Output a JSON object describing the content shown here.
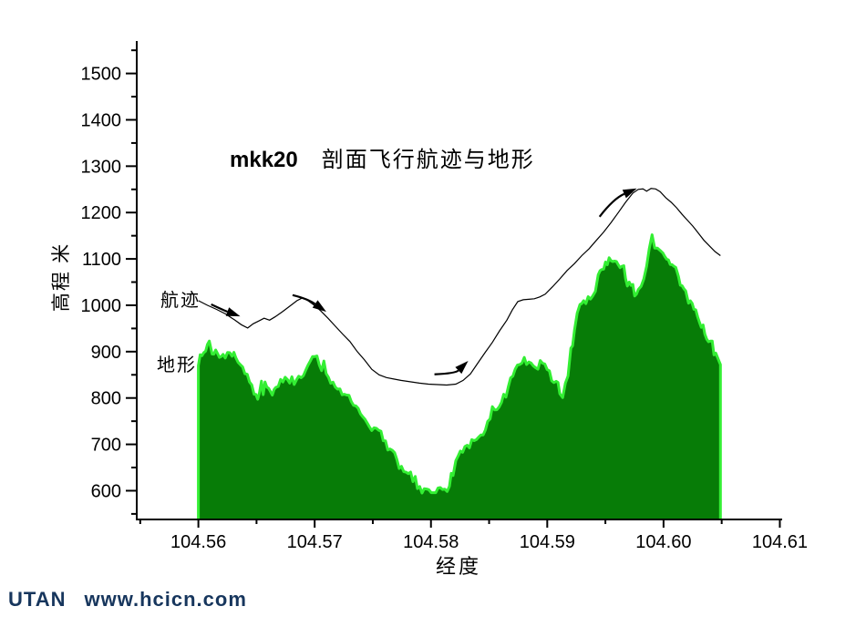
{
  "title": {
    "series": "mkk20",
    "text": "剖面飞行航迹与地形"
  },
  "watermark": {
    "brand": "UTAN",
    "site": "www.hcicn.com",
    "color": "#17365D"
  },
  "colors": {
    "background": "#FFFFFF",
    "axis": "#000000",
    "terrain_fill": "#077C07",
    "terrain_edge": "#33EE33",
    "trajectory": "#000000"
  },
  "chart_data": {
    "type": "area",
    "title": "mkk20  剖面飞行航迹与地形",
    "xlabel": "经度",
    "ylabel": "高程 米",
    "x_range": [
      104.5547,
      104.6102
    ],
    "y_range": [
      538,
      1570
    ],
    "grid": false,
    "x_tick_values": [
      104.56,
      104.57,
      104.58,
      104.59,
      104.6,
      104.61
    ],
    "x_tick_labels": [
      "104.56",
      "104.57",
      "104.58",
      "104.59",
      "104.60",
      "104.61"
    ],
    "x_minor_ticks": [
      104.555,
      104.565,
      104.575,
      104.585,
      104.595,
      104.605
    ],
    "y_tick_values": [
      600,
      700,
      800,
      900,
      1000,
      1100,
      1200,
      1300,
      1400,
      1500
    ],
    "y_tick_labels": [
      "600",
      "700",
      "800",
      "900",
      "1000",
      "1100",
      "1200",
      "1300",
      "1400",
      "1500"
    ],
    "y_minor_ticks": [
      550,
      650,
      750,
      850,
      950,
      1050,
      1150,
      1250,
      1350,
      1450,
      1550
    ],
    "series": [
      {
        "name": "地形",
        "type": "area",
        "fill": "#077C07",
        "edge": "#33EE33",
        "edge_width": 3,
        "style": "jagged",
        "jitter_m": 9,
        "spike_m": 16,
        "points": [
          [
            104.56,
            870
          ],
          [
            104.56031,
            890
          ],
          [
            104.56063,
            905
          ],
          [
            104.56094,
            928
          ],
          [
            104.56118,
            900
          ],
          [
            104.56149,
            893
          ],
          [
            104.56181,
            879
          ],
          [
            104.56212,
            889
          ],
          [
            104.56251,
            896
          ],
          [
            104.5629,
            892
          ],
          [
            104.56322,
            884
          ],
          [
            104.56361,
            870
          ],
          [
            104.564,
            856
          ],
          [
            104.5644,
            835
          ],
          [
            104.56479,
            810
          ],
          [
            104.5651,
            800
          ],
          [
            104.56542,
            812
          ],
          [
            104.56573,
            820
          ],
          [
            104.56604,
            826
          ],
          [
            104.56636,
            810
          ],
          [
            104.56667,
            828
          ],
          [
            104.56707,
            836
          ],
          [
            104.56746,
            843
          ],
          [
            104.56785,
            840
          ],
          [
            104.56824,
            834
          ],
          [
            104.56863,
            842
          ],
          [
            104.56903,
            850
          ],
          [
            104.56942,
            860
          ],
          [
            104.56981,
            896
          ],
          [
            104.5702,
            886
          ],
          [
            104.5706,
            862
          ],
          [
            104.57099,
            852
          ],
          [
            104.57138,
            840
          ],
          [
            104.57177,
            826
          ],
          [
            104.57217,
            812
          ],
          [
            104.57256,
            808
          ],
          [
            104.57295,
            800
          ],
          [
            104.57334,
            788
          ],
          [
            104.57374,
            772
          ],
          [
            104.57413,
            760
          ],
          [
            104.57452,
            746
          ],
          [
            104.57491,
            734
          ],
          [
            104.57531,
            726
          ],
          [
            104.5757,
            712
          ],
          [
            104.57609,
            700
          ],
          [
            104.57648,
            688
          ],
          [
            104.57688,
            668
          ],
          [
            104.57727,
            655
          ],
          [
            104.57766,
            645
          ],
          [
            104.57805,
            630
          ],
          [
            104.57845,
            618
          ],
          [
            104.57884,
            606
          ],
          [
            104.57923,
            600
          ],
          [
            104.57962,
            597
          ],
          [
            104.58002,
            594
          ],
          [
            104.58041,
            598
          ],
          [
            104.5808,
            600
          ],
          [
            104.58119,
            596
          ],
          [
            104.58159,
            605
          ],
          [
            104.5819,
            640
          ],
          [
            104.58214,
            668
          ],
          [
            104.58253,
            680
          ],
          [
            104.58292,
            695
          ],
          [
            104.58331,
            700
          ],
          [
            104.58371,
            710
          ],
          [
            104.5841,
            718
          ],
          [
            104.58449,
            726
          ],
          [
            104.58488,
            750
          ],
          [
            104.58528,
            775
          ],
          [
            104.58567,
            780
          ],
          [
            104.58606,
            795
          ],
          [
            104.58645,
            805
          ],
          [
            104.58685,
            845
          ],
          [
            104.58724,
            855
          ],
          [
            104.58763,
            868
          ],
          [
            104.58802,
            880
          ],
          [
            104.58842,
            876
          ],
          [
            104.58881,
            874
          ],
          [
            104.5892,
            866
          ],
          [
            104.58959,
            878
          ],
          [
            104.58999,
            860
          ],
          [
            104.59038,
            845
          ],
          [
            104.59077,
            834
          ],
          [
            104.59108,
            815
          ],
          [
            104.59132,
            803
          ],
          [
            104.59156,
            815
          ],
          [
            104.59179,
            850
          ],
          [
            104.59203,
            890
          ],
          [
            104.59218,
            920
          ],
          [
            104.59234,
            955
          ],
          [
            104.59258,
            975
          ],
          [
            104.59281,
            990
          ],
          [
            104.59313,
            1003
          ],
          [
            104.59352,
            1012
          ],
          [
            104.59391,
            1015
          ],
          [
            104.59414,
            1030
          ],
          [
            104.59438,
            1070
          ],
          [
            104.59469,
            1075
          ],
          [
            104.59501,
            1085
          ],
          [
            104.59532,
            1092
          ],
          [
            104.59563,
            1088
          ],
          [
            104.59595,
            1086
          ],
          [
            104.59626,
            1085
          ],
          [
            104.59658,
            1070
          ],
          [
            104.59689,
            1050
          ],
          [
            104.5972,
            1040
          ],
          [
            104.59752,
            1028
          ],
          [
            104.59783,
            1020
          ],
          [
            104.59807,
            1035
          ],
          [
            104.5983,
            1048
          ],
          [
            104.59854,
            1080
          ],
          [
            104.59877,
            1120
          ],
          [
            104.59901,
            1135
          ],
          [
            104.59924,
            1128
          ],
          [
            104.59948,
            1124
          ],
          [
            104.59979,
            1110
          ],
          [
            104.60011,
            1100
          ],
          [
            104.60042,
            1092
          ],
          [
            104.60073,
            1088
          ],
          [
            104.60105,
            1084
          ],
          [
            104.60128,
            1055
          ],
          [
            104.6016,
            1042
          ],
          [
            104.60191,
            1035
          ],
          [
            104.60215,
            1013
          ],
          [
            104.60246,
            995
          ],
          [
            104.60277,
            980
          ],
          [
            104.60309,
            962
          ],
          [
            104.6034,
            950
          ],
          [
            104.60371,
            934
          ],
          [
            104.60403,
            916
          ],
          [
            104.60434,
            900
          ],
          [
            104.60465,
            885
          ],
          [
            104.60489,
            872
          ]
        ]
      },
      {
        "name": "航迹",
        "type": "line",
        "color": "#000000",
        "width": 1.2,
        "points": [
          [
            104.56,
            1010
          ],
          [
            104.56078,
            1000
          ],
          [
            104.56157,
            991
          ],
          [
            104.56236,
            981
          ],
          [
            104.56314,
            968
          ],
          [
            104.56369,
            958
          ],
          [
            104.56424,
            951
          ],
          [
            104.56471,
            960
          ],
          [
            104.56518,
            966
          ],
          [
            104.56565,
            972
          ],
          [
            104.56612,
            968
          ],
          [
            104.56659,
            975
          ],
          [
            104.56722,
            986
          ],
          [
            104.56785,
            998
          ],
          [
            104.56848,
            1010
          ],
          [
            104.56895,
            1016
          ],
          [
            104.56942,
            1010
          ],
          [
            104.56997,
            1000
          ],
          [
            104.57052,
            988
          ],
          [
            104.57115,
            972
          ],
          [
            104.57177,
            955
          ],
          [
            104.5724,
            938
          ],
          [
            104.57303,
            922
          ],
          [
            104.57366,
            900
          ],
          [
            104.57429,
            882
          ],
          [
            104.57491,
            862
          ],
          [
            104.57554,
            850
          ],
          [
            104.57617,
            844
          ],
          [
            104.5768,
            841
          ],
          [
            104.57742,
            838
          ],
          [
            104.57821,
            835
          ],
          [
            104.579,
            832
          ],
          [
            104.57978,
            830
          ],
          [
            104.58057,
            829
          ],
          [
            104.58135,
            828
          ],
          [
            104.58214,
            830
          ],
          [
            104.58276,
            838
          ],
          [
            104.58339,
            852
          ],
          [
            104.58402,
            875
          ],
          [
            104.58465,
            898
          ],
          [
            104.58528,
            920
          ],
          [
            104.5859,
            945
          ],
          [
            104.58653,
            968
          ],
          [
            104.587,
            990
          ],
          [
            104.58747,
            1008
          ],
          [
            104.58794,
            1012
          ],
          [
            104.58842,
            1013
          ],
          [
            104.58889,
            1014
          ],
          [
            104.58936,
            1018
          ],
          [
            104.58983,
            1024
          ],
          [
            104.59046,
            1040
          ],
          [
            104.59108,
            1057
          ],
          [
            104.59171,
            1075
          ],
          [
            104.59234,
            1090
          ],
          [
            104.59297,
            1107
          ],
          [
            104.5936,
            1122
          ],
          [
            104.59422,
            1140
          ],
          [
            104.59485,
            1158
          ],
          [
            104.59548,
            1178
          ],
          [
            104.59611,
            1200
          ],
          [
            104.59673,
            1222
          ],
          [
            104.59736,
            1242
          ],
          [
            104.59783,
            1250
          ],
          [
            104.59823,
            1251
          ],
          [
            104.59854,
            1246
          ],
          [
            104.59893,
            1252
          ],
          [
            104.59932,
            1251
          ],
          [
            104.59971,
            1245
          ],
          [
            104.60019,
            1232
          ],
          [
            104.60066,
            1222
          ],
          [
            104.60113,
            1210
          ],
          [
            104.6016,
            1196
          ],
          [
            104.60207,
            1183
          ],
          [
            104.60254,
            1170
          ],
          [
            104.60301,
            1155
          ],
          [
            104.60348,
            1140
          ],
          [
            104.60395,
            1128
          ],
          [
            104.60442,
            1116
          ],
          [
            104.60489,
            1107
          ]
        ]
      }
    ],
    "arrows": [
      {
        "tail": [
          104.5611,
          1002
        ],
        "ctrl": [
          104.5623,
          988
        ],
        "tip": [
          104.5636,
          976
        ]
      },
      {
        "tail": [
          104.5681,
          1022
        ],
        "ctrl": [
          104.5694,
          1014
        ],
        "tip": [
          104.571,
          986
        ]
      },
      {
        "tail": [
          104.5803,
          851
        ],
        "ctrl": [
          104.5821,
          853
        ],
        "tip": [
          104.5832,
          880
        ]
      },
      {
        "tail": [
          104.5945,
          1191
        ],
        "ctrl": [
          104.5957,
          1230
        ],
        "tip": [
          104.5977,
          1252
        ]
      }
    ],
    "legend_position": "none"
  }
}
